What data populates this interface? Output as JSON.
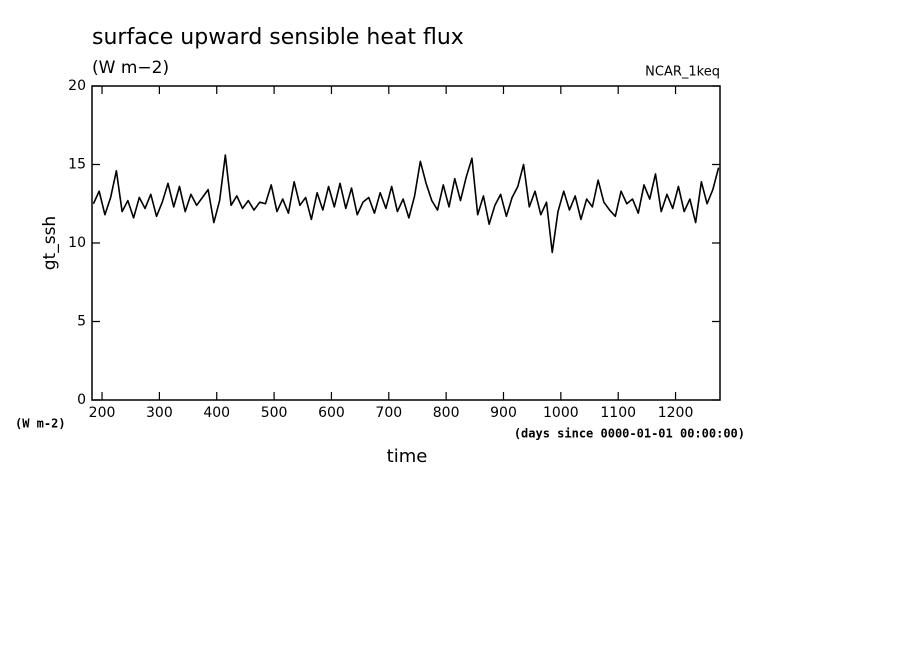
{
  "chart_data": {
    "type": "line",
    "title": "surface upward sensible heat flux",
    "subtitle": "(W m−2)",
    "annotation": "NCAR_1keq",
    "ylabel": "gt_ssh",
    "yunit": "(W m-2)",
    "xlabel": "time",
    "xunit": "(days since 0000-01-01 00:00:00)",
    "color": "#000000",
    "xlim": [
      182.5,
      1277.5
    ],
    "ylim": [
      0,
      20
    ],
    "xticks": [
      200,
      300,
      400,
      500,
      600,
      700,
      800,
      900,
      1000,
      1100,
      1200
    ],
    "yticks": [
      0,
      5,
      10,
      15,
      20
    ],
    "x": [
      185,
      195,
      205,
      215,
      225,
      235,
      245,
      255,
      265,
      275,
      285,
      295,
      305,
      315,
      325,
      335,
      345,
      355,
      365,
      375,
      385,
      395,
      405,
      415,
      425,
      435,
      445,
      455,
      465,
      475,
      485,
      495,
      505,
      515,
      525,
      535,
      545,
      555,
      565,
      575,
      585,
      595,
      605,
      615,
      625,
      635,
      645,
      655,
      665,
      675,
      685,
      695,
      705,
      715,
      725,
      735,
      745,
      755,
      765,
      775,
      785,
      795,
      805,
      815,
      825,
      835,
      845,
      855,
      865,
      875,
      885,
      895,
      905,
      915,
      925,
      935,
      945,
      955,
      965,
      975,
      985,
      995,
      1005,
      1015,
      1025,
      1035,
      1045,
      1055,
      1065,
      1075,
      1085,
      1095,
      1105,
      1115,
      1125,
      1135,
      1145,
      1155,
      1165,
      1175,
      1185,
      1195,
      1205,
      1215,
      1225,
      1235,
      1245,
      1255,
      1265,
      1275
    ],
    "values": [
      12.5,
      13.3,
      11.8,
      12.9,
      14.6,
      12.0,
      12.7,
      11.6,
      12.9,
      12.2,
      13.1,
      11.7,
      12.6,
      13.8,
      12.3,
      13.6,
      12.0,
      13.1,
      12.4,
      12.9,
      13.4,
      11.3,
      12.7,
      15.6,
      12.4,
      13.0,
      12.2,
      12.7,
      12.1,
      12.6,
      12.5,
      13.7,
      12.0,
      12.8,
      11.9,
      13.9,
      12.4,
      12.9,
      11.5,
      13.2,
      12.1,
      13.6,
      12.3,
      13.8,
      12.2,
      13.5,
      11.8,
      12.6,
      12.9,
      11.9,
      13.2,
      12.2,
      13.6,
      12.0,
      12.8,
      11.6,
      13.0,
      15.2,
      13.8,
      12.7,
      12.1,
      13.7,
      12.3,
      14.1,
      12.7,
      14.2,
      15.4,
      11.8,
      13.0,
      11.2,
      12.4,
      13.1,
      11.7,
      12.9,
      13.6,
      15.0,
      12.3,
      13.3,
      11.8,
      12.6,
      9.4,
      12.0,
      13.3,
      12.1,
      13.0,
      11.5,
      12.8,
      12.3,
      14.0,
      12.6,
      12.1,
      11.7,
      13.3,
      12.5,
      12.8,
      11.9,
      13.7,
      12.8,
      14.4,
      12.0,
      13.1,
      12.2,
      13.6,
      12.0,
      12.8,
      11.3,
      13.9,
      12.5,
      13.4,
      14.8
    ]
  }
}
